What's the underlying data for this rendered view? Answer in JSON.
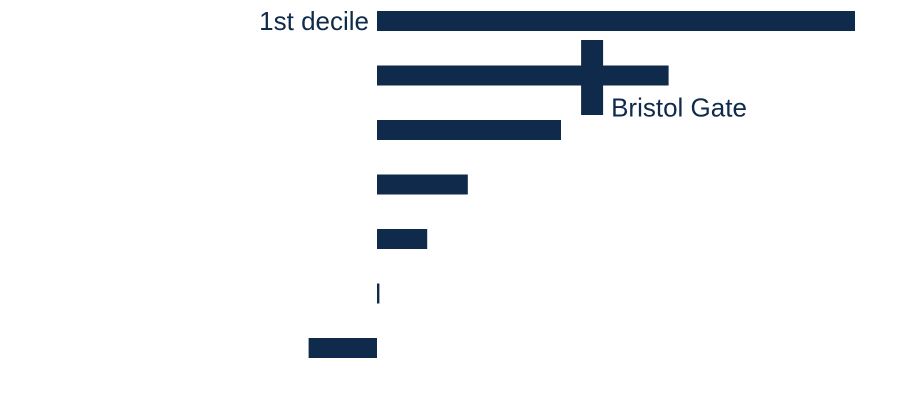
{
  "colors": {
    "bar": "#0f2a4a",
    "label": "#0f2a4a",
    "background": "#ffffff"
  },
  "chart_data": {
    "type": "bar",
    "orientation": "horizontal",
    "title": "",
    "xlabel": "",
    "ylabel": "",
    "grid": false,
    "legend": "none",
    "xlim": [
      -1.43,
      10
    ],
    "categories": [
      "1st decile",
      "",
      "",
      "",
      "",
      "",
      ""
    ],
    "values": [
      10.0,
      6.1,
      3.85,
      1.9,
      1.05,
      0.05,
      -1.43
    ],
    "annotations": [
      {
        "text": "Bristol Gate",
        "marker": "cross",
        "category_index": 1,
        "value": 4.5
      }
    ]
  }
}
